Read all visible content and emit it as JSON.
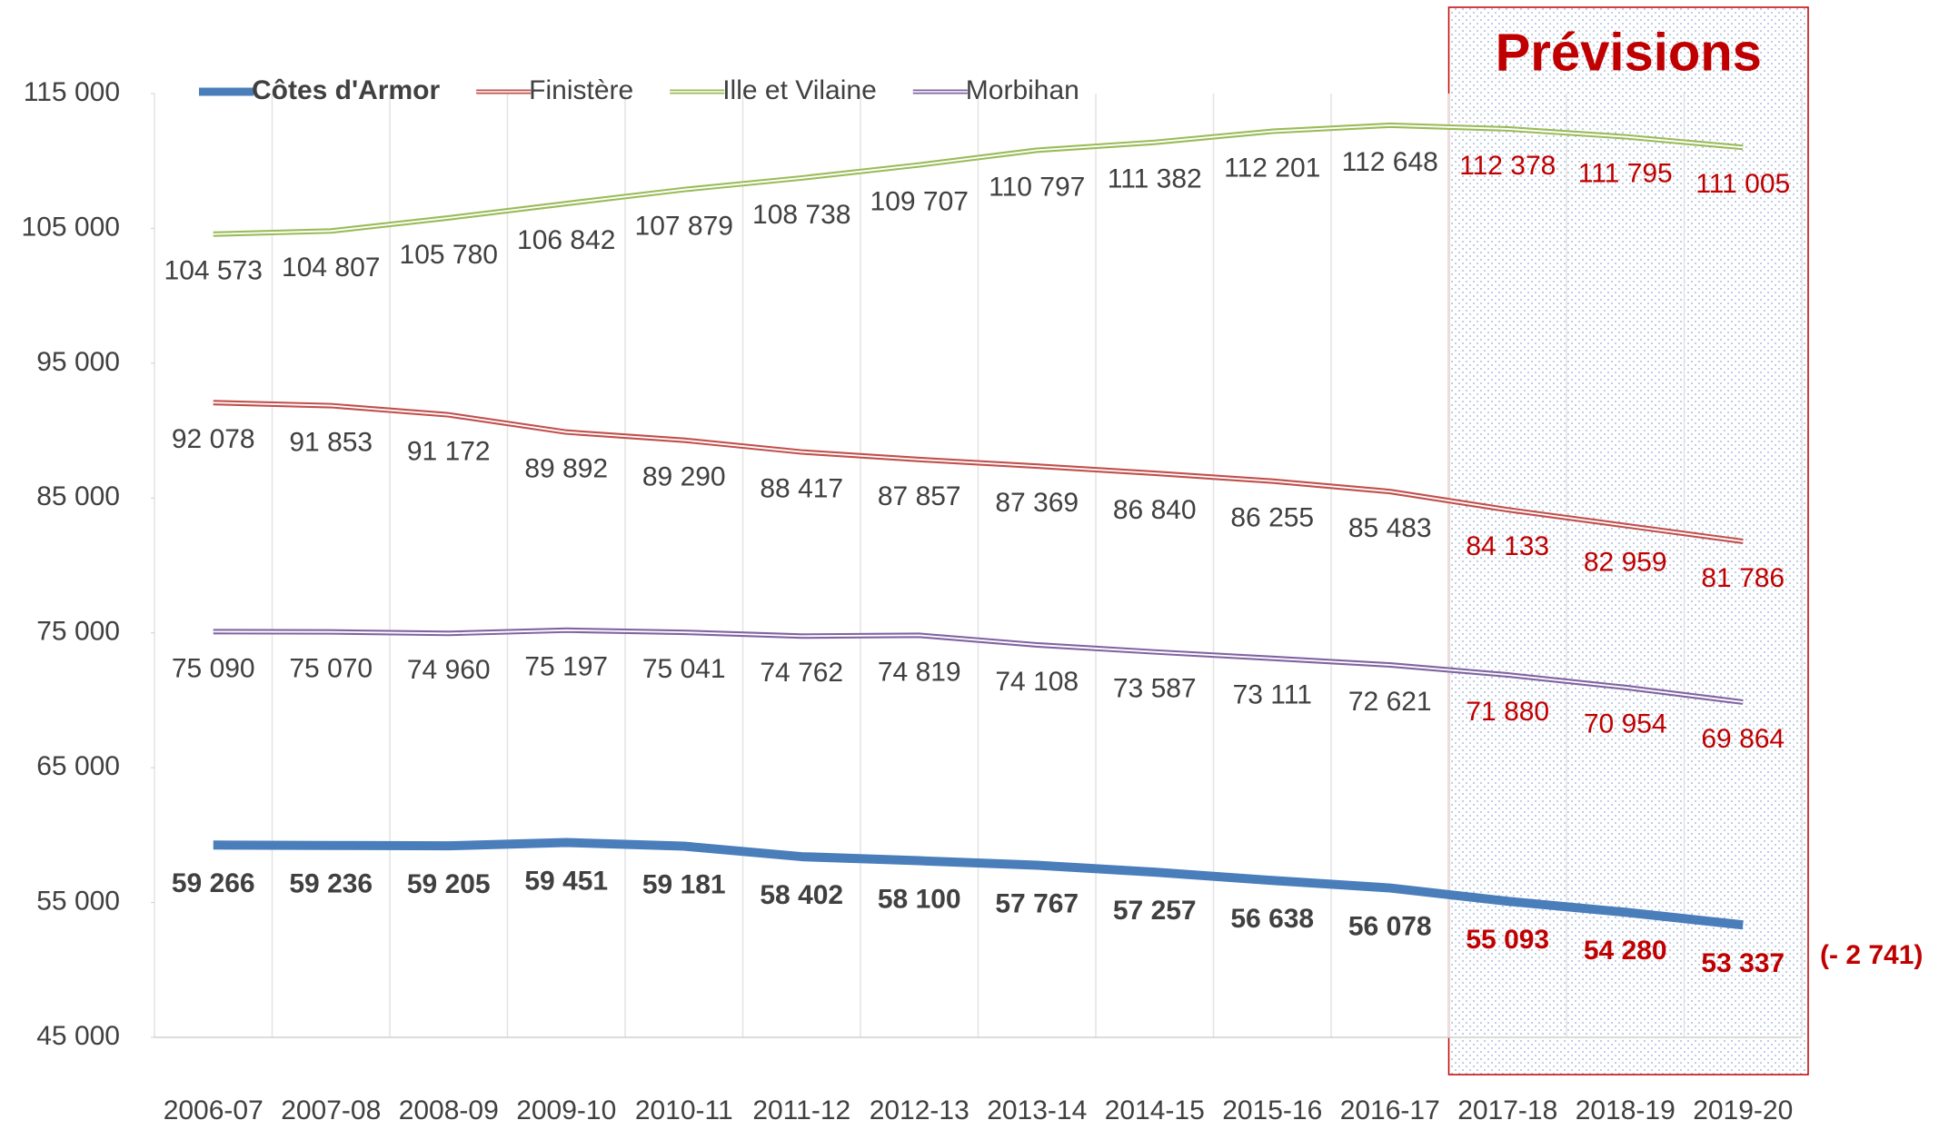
{
  "chart_data": {
    "type": "line",
    "categories": [
      "2006-07",
      "2007-08",
      "2008-09",
      "2009-10",
      "2010-11",
      "2011-12",
      "2012-13",
      "2013-14",
      "2014-15",
      "2015-16",
      "2016-17",
      "2017-18",
      "2018-19",
      "2019-20"
    ],
    "series": [
      {
        "name": "Côtes d'Armor",
        "color": "#4a7ebb",
        "values": [
          59266,
          59236,
          59205,
          59451,
          59181,
          58402,
          58100,
          57767,
          57257,
          56638,
          56078,
          55093,
          54280,
          53337
        ],
        "value_labels": [
          "59 266",
          "59 236",
          "59 205",
          "59 451",
          "59 181",
          "58 402",
          "58 100",
          "57 767",
          "57 257",
          "56 638",
          "56 078",
          "55 093",
          "54 280",
          "53 337"
        ]
      },
      {
        "name": "Finistère",
        "color": "#c0504d",
        "values": [
          92078,
          91853,
          91172,
          89892,
          89290,
          88417,
          87857,
          87369,
          86840,
          86255,
          85483,
          84133,
          82959,
          81786
        ],
        "value_labels": [
          "92 078",
          "91 853",
          "91 172",
          "89 892",
          "89 290",
          "88 417",
          "87 857",
          "87 369",
          "86 840",
          "86 255",
          "85 483",
          "84 133",
          "82 959",
          "81 786"
        ]
      },
      {
        "name": "Ille et Vilaine",
        "color": "#9bbb59",
        "values": [
          104573,
          104807,
          105780,
          106842,
          107879,
          108738,
          109707,
          110797,
          111382,
          112201,
          112648,
          112378,
          111795,
          111005
        ],
        "value_labels": [
          "104 573",
          "104 807",
          "105 780",
          "106 842",
          "107 879",
          "108 738",
          "109 707",
          "110 797",
          "111 382",
          "112 201",
          "112 648",
          "112 378",
          "111 795",
          "111 005"
        ]
      },
      {
        "name": "Morbihan",
        "color": "#8064a2",
        "values": [
          75090,
          75070,
          74960,
          75197,
          75041,
          74762,
          74819,
          74108,
          73587,
          73111,
          72621,
          71880,
          70954,
          69864
        ],
        "value_labels": [
          "75 090",
          "75 070",
          "74 960",
          "75 197",
          "75 041",
          "74 762",
          "74 819",
          "74 108",
          "73 587",
          "73 111",
          "72 621",
          "71 880",
          "70 954",
          "69 864"
        ]
      }
    ],
    "ylim": [
      45000,
      115000
    ],
    "yticks": [
      {
        "value": 45000,
        "label": "45 000"
      },
      {
        "value": 55000,
        "label": "55 000"
      },
      {
        "value": 65000,
        "label": "65 000"
      },
      {
        "value": 75000,
        "label": "75 000"
      },
      {
        "value": 85000,
        "label": "85 000"
      },
      {
        "value": 95000,
        "label": "95 000"
      },
      {
        "value": 105000,
        "label": "105 000"
      },
      {
        "value": 115000,
        "label": "115 000"
      }
    ],
    "grid": "x",
    "legend": "top",
    "forecast": {
      "label": "Prévisions",
      "start": "2017-18",
      "color": "#c00000"
    },
    "annotation": "(- 2 741)"
  }
}
